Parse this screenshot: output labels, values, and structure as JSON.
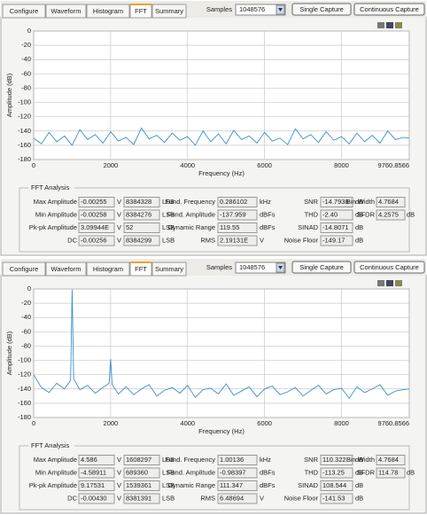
{
  "panels": [
    {
      "tabs": [
        "Configure",
        "Waveform",
        "Histogram",
        "FFT",
        "Summary"
      ],
      "samples_label": "Samples",
      "samples_value": "1048576",
      "buttons": [
        "Single Capture",
        "Continuous Capture"
      ],
      "analysis": {
        "title": "FFT Analysis",
        "amplitude_rows": [
          {
            "label": "Max Amplitude",
            "volts": "-0.00255",
            "volt_unit": "V",
            "lsb": "8384328",
            "lsb_unit": "LSB"
          },
          {
            "label": "Min Amplitude",
            "volts": "-0.00258",
            "volt_unit": "V",
            "lsb": "8384276",
            "lsb_unit": "LSB"
          },
          {
            "label": "Pk-pk Amplitude",
            "volts": "3.09944E",
            "volt_unit": "V",
            "lsb": "52",
            "lsb_unit": "LSB"
          },
          {
            "label": "DC",
            "volts": "-0.00256",
            "volt_unit": "V",
            "lsb": "8384299",
            "lsb_unit": "LSB"
          }
        ],
        "mid_rows": [
          {
            "label": "Fund. Frequency",
            "value": "0.286102",
            "unit": "kHz"
          },
          {
            "label": "Fund. Amplitude",
            "value": "-137.959",
            "unit": "dBFs"
          },
          {
            "label": "Dynamic Range",
            "value": "119.55",
            "unit": "dBFs"
          },
          {
            "label": "RMS",
            "value": "2.19131E",
            "unit": "V"
          }
        ],
        "noise_rows": [
          {
            "label": "SNR",
            "value": "-14.7938",
            "unit": "dB"
          },
          {
            "label": "THD",
            "value": "-2.40",
            "unit": "dB"
          },
          {
            "label": "SINAD",
            "value": "-14.8071",
            "unit": "dB"
          },
          {
            "label": "Noise Floor",
            "value": "-149.17",
            "unit": "dB"
          }
        ],
        "right_rows": [
          {
            "label": "Bin Width",
            "value": "4.7684"
          },
          {
            "label": "SFDR",
            "value": "4.2575",
            "unit": "dB"
          }
        ]
      }
    },
    {
      "tabs": [
        "Configure",
        "Waveform",
        "Histogram",
        "FFT",
        "Summary"
      ],
      "samples_label": "Samples",
      "samples_value": "1048576",
      "buttons": [
        "Single Capture",
        "Continuous Capture"
      ],
      "analysis": {
        "title": "FFT Analysis",
        "amplitude_rows": [
          {
            "label": "Max Amplitude",
            "volts": "4.586",
            "volt_unit": "V",
            "lsb": "1608297",
            "lsb_unit": "LSB"
          },
          {
            "label": "Min Amplitude",
            "volts": "-4.58911",
            "volt_unit": "V",
            "lsb": "689360",
            "lsb_unit": "LSB"
          },
          {
            "label": "Pk-pk Amplitude",
            "volts": "9.17531",
            "volt_unit": "V",
            "lsb": "1539361",
            "lsb_unit": "LSB"
          },
          {
            "label": "DC",
            "volts": "-0.00430",
            "volt_unit": "V",
            "lsb": "8381391",
            "lsb_unit": "LSB"
          }
        ],
        "mid_rows": [
          {
            "label": "Fund. Frequency",
            "value": "1.00136",
            "unit": "kHz"
          },
          {
            "label": "Fund. Amplitude",
            "value": "-0.98397",
            "unit": "dBFs"
          },
          {
            "label": "Dynamic Range",
            "value": "111.347",
            "unit": "dBFs"
          },
          {
            "label": "RMS",
            "value": "6.48694",
            "unit": "V"
          }
        ],
        "noise_rows": [
          {
            "label": "SNR",
            "value": "110.322",
            "unit": "dB"
          },
          {
            "label": "THD",
            "value": "-113.25",
            "unit": "dB"
          },
          {
            "label": "SINAD",
            "value": "108.544",
            "unit": "dB"
          },
          {
            "label": "Noise Floor",
            "value": "-141.53",
            "unit": "dB"
          }
        ],
        "right_rows": [
          {
            "label": "Bin Width",
            "value": "4.7684"
          },
          {
            "label": "SFDR",
            "value": "114.78",
            "unit": "dB"
          }
        ]
      }
    }
  ],
  "chart_data": [
    {
      "type": "line",
      "x_label": "Frequency (Hz)",
      "y_label": "Amplitude (dB)",
      "color": "#3b8fd0",
      "grid": true,
      "xlim": [
        0,
        9760.8566
      ],
      "ylim": [
        -180,
        0
      ],
      "xticks": [
        0,
        2000,
        4000,
        6000,
        8000,
        9760.8566
      ],
      "yticks": [
        0,
        -20,
        -40,
        -60,
        -80,
        -100,
        -120,
        -140,
        -160,
        -180
      ],
      "x": [
        0,
        200,
        400,
        600,
        800,
        1000,
        1200,
        1400,
        1600,
        1800,
        2000,
        2200,
        2400,
        2600,
        2800,
        3000,
        3200,
        3400,
        3600,
        3800,
        4000,
        4200,
        4400,
        4600,
        4800,
        5000,
        5200,
        5400,
        5600,
        5800,
        6000,
        6200,
        6400,
        6600,
        6800,
        7000,
        7200,
        7400,
        7600,
        7800,
        8000,
        8200,
        8400,
        8600,
        8800,
        9000,
        9200,
        9400,
        9600,
        9760.8566
      ],
      "values": [
        -150,
        -158,
        -142,
        -155,
        -147,
        -160,
        -138,
        -152,
        -145,
        -157,
        -141,
        -154,
        -149,
        -159,
        -136,
        -151,
        -146,
        -156,
        -143,
        -153,
        -148,
        -160,
        -140,
        -155,
        -144,
        -158,
        -139,
        -152,
        -147,
        -157,
        -142,
        -154,
        -150,
        -159,
        -137,
        -151,
        -145,
        -156,
        -141,
        -153,
        -148,
        -158,
        -143,
        -155,
        -146,
        -157,
        -140,
        -152,
        -149,
        -150
      ]
    },
    {
      "type": "line",
      "x_label": "Frequency (Hz)",
      "y_label": "Amplitude (dB)",
      "color": "#3b8fd0",
      "grid": true,
      "xlim": [
        0,
        9760.8566
      ],
      "ylim": [
        -180,
        0
      ],
      "xticks": [
        0,
        2000,
        4000,
        6000,
        8000,
        9760.8566
      ],
      "yticks": [
        0,
        -20,
        -40,
        -60,
        -80,
        -100,
        -120,
        -140,
        -160,
        -180
      ],
      "x": [
        0,
        200,
        400,
        600,
        800,
        960,
        1000,
        1040,
        1200,
        1400,
        1600,
        1800,
        1960,
        2000,
        2040,
        2200,
        2400,
        2600,
        2800,
        3000,
        3200,
        3400,
        3600,
        3800,
        4000,
        4200,
        4400,
        4600,
        4800,
        5000,
        5200,
        5400,
        5600,
        5800,
        6000,
        6200,
        6400,
        6600,
        6800,
        7000,
        7200,
        7400,
        7600,
        7800,
        8000,
        8200,
        8400,
        8600,
        8800,
        9000,
        9200,
        9400,
        9600,
        9760.8566
      ],
      "values": [
        -120,
        -138,
        -145,
        -132,
        -140,
        -128,
        -1,
        -126,
        -141,
        -135,
        -146,
        -138,
        -132,
        -98,
        -134,
        -147,
        -137,
        -148,
        -140,
        -134,
        -150,
        -142,
        -138,
        -146,
        -135,
        -152,
        -141,
        -139,
        -147,
        -133,
        -149,
        -143,
        -137,
        -151,
        -140,
        -136,
        -148,
        -144,
        -138,
        -150,
        -142,
        -135,
        -147,
        -141,
        -139,
        -153,
        -137,
        -145,
        -140,
        -134,
        -149,
        -143,
        -141,
        -140
      ]
    }
  ]
}
